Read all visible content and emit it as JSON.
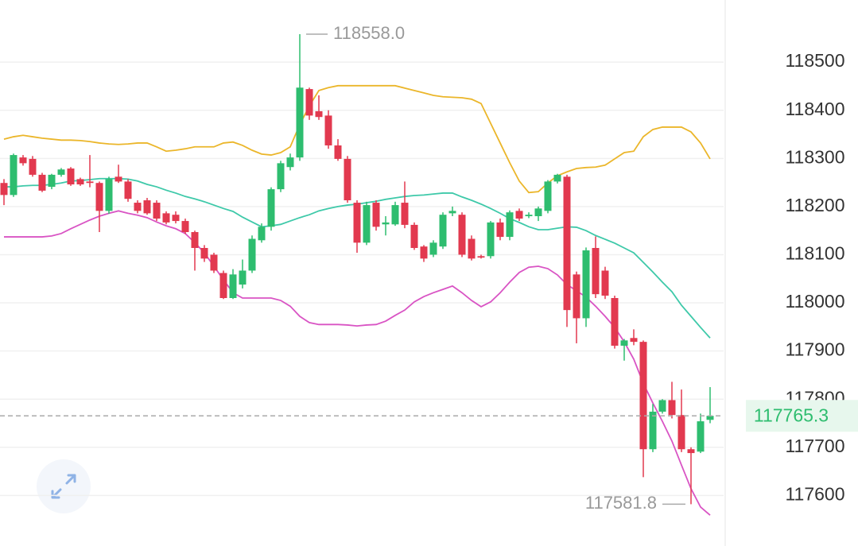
{
  "chart_data": {
    "type": "candlestick",
    "up_color": "#2ebd6f",
    "down_color": "#e2394f",
    "ylim": [
      117495,
      118629
    ],
    "yticks": [
      117600,
      117700,
      117800,
      117900,
      118000,
      118100,
      118200,
      118300,
      118400,
      118500
    ],
    "grid": true,
    "ohlc": [
      [
        118249,
        118257,
        118203,
        118224
      ],
      [
        118224,
        118310,
        118220,
        118307
      ],
      [
        118302,
        118307,
        118285,
        118290
      ],
      [
        118299,
        118305,
        118262,
        118266
      ],
      [
        118266,
        118270,
        118230,
        118233
      ],
      [
        118241,
        118268,
        118236,
        118266
      ],
      [
        118266,
        118280,
        118262,
        118277
      ],
      [
        118279,
        118282,
        118243,
        118246
      ],
      [
        118257,
        118260,
        118243,
        118246
      ],
      [
        118252,
        118307,
        118240,
        118249
      ],
      [
        118249,
        118252,
        118147,
        118191
      ],
      [
        118191,
        118262,
        118185,
        118257
      ],
      [
        118262,
        118287,
        118249,
        118252
      ],
      [
        118252,
        118257,
        118210,
        118216
      ],
      [
        118208,
        118213,
        118186,
        118191
      ],
      [
        118213,
        118218,
        118183,
        118186
      ],
      [
        118208,
        118213,
        118170,
        118175
      ],
      [
        118186,
        118190,
        118163,
        118167
      ],
      [
        118183,
        118190,
        118165,
        118170
      ],
      [
        118170,
        118175,
        118143,
        118147
      ],
      [
        118147,
        118150,
        118067,
        118114
      ],
      [
        118114,
        118120,
        118085,
        118092
      ],
      [
        118100,
        118104,
        118062,
        118067
      ],
      [
        118062,
        118067,
        118008,
        118010
      ],
      [
        118010,
        118070,
        118008,
        118059
      ],
      [
        118038,
        118090,
        118030,
        118067
      ],
      [
        118067,
        118140,
        118062,
        118133
      ],
      [
        118130,
        118165,
        118125,
        118158
      ],
      [
        118158,
        118240,
        118150,
        118236
      ],
      [
        118236,
        118295,
        118230,
        118290
      ],
      [
        118282,
        118310,
        118275,
        118302
      ],
      [
        118302,
        118558,
        118295,
        118447
      ],
      [
        118444,
        118447,
        118380,
        118389
      ],
      [
        118398,
        118431,
        118380,
        118386
      ],
      [
        118389,
        118400,
        118320,
        118327
      ],
      [
        118327,
        118340,
        118295,
        118299
      ],
      [
        118299,
        118305,
        118208,
        118213
      ],
      [
        118208,
        118213,
        118104,
        118125
      ],
      [
        118125,
        118210,
        118120,
        118203
      ],
      [
        118208,
        118213,
        118150,
        118158
      ],
      [
        118163,
        118180,
        118140,
        118167
      ],
      [
        118163,
        118210,
        118160,
        118203
      ],
      [
        118208,
        118252,
        118155,
        118162
      ],
      [
        118162,
        118167,
        118110,
        118114
      ],
      [
        118117,
        118120,
        118085,
        118092
      ],
      [
        118100,
        118130,
        118095,
        118125
      ],
      [
        118117,
        118188,
        118112,
        118183
      ],
      [
        118186,
        118200,
        118180,
        118191
      ],
      [
        118183,
        118188,
        118095,
        118100
      ],
      [
        118133,
        118140,
        118088,
        118092
      ],
      [
        118097,
        118100,
        118092,
        118094
      ],
      [
        118097,
        118170,
        118092,
        118167
      ],
      [
        118167,
        118175,
        118130,
        118137
      ],
      [
        118137,
        118192,
        118130,
        118188
      ],
      [
        118191,
        118196,
        118170,
        118175
      ],
      [
        118180,
        118188,
        118176,
        118183
      ],
      [
        118180,
        118200,
        118170,
        118196
      ],
      [
        118191,
        118255,
        118186,
        118252
      ],
      [
        118252,
        118268,
        118248,
        118266
      ],
      [
        118262,
        118266,
        117950,
        117985
      ],
      [
        118059,
        118065,
        117916,
        117968
      ],
      [
        117968,
        118115,
        117950,
        118109
      ],
      [
        118114,
        118138,
        118010,
        118018
      ],
      [
        118067,
        118075,
        118008,
        118015
      ],
      [
        118010,
        118015,
        117905,
        117911
      ],
      [
        117911,
        117925,
        117880,
        117922
      ],
      [
        117927,
        117945,
        117912,
        117919
      ],
      [
        117919,
        117922,
        117638,
        117696
      ],
      [
        117696,
        117790,
        117690,
        117774
      ],
      [
        117774,
        117800,
        117770,
        117798
      ],
      [
        117798,
        117836,
        117760,
        117767
      ],
      [
        117767,
        117820,
        117690,
        117696
      ],
      [
        117696,
        117700,
        117581.8,
        117688
      ],
      [
        117691,
        117770,
        117688,
        117754
      ],
      [
        117757,
        117825,
        117750,
        117765.3
      ]
    ],
    "series": [
      {
        "color": "#ebb62a",
        "values": [
          118340,
          118345,
          118348,
          118345,
          118342,
          118340,
          118338,
          118338,
          118337,
          118335,
          118332,
          118330,
          118329,
          118330,
          118332,
          118332,
          118324,
          118315,
          118317,
          118320,
          118324,
          118324,
          118324,
          118332,
          118334,
          118327,
          118317,
          118309,
          118307,
          118312,
          118324,
          118370,
          118409,
          118441,
          118447,
          118451,
          118451,
          118451,
          118451,
          118451,
          118451,
          118451,
          118446,
          118441,
          118436,
          118431,
          118428,
          118427,
          118426,
          118423,
          118414,
          118373,
          118332,
          118291,
          118253,
          118229,
          118231,
          118249,
          118264,
          118272,
          118279,
          118281,
          118282,
          118286,
          118299,
          118312,
          118315,
          118345,
          118360,
          118365,
          118365,
          118365,
          118355,
          118332,
          118299
        ]
      },
      {
        "color": "#3ec9a9",
        "values": [
          118241,
          118241,
          118243,
          118244,
          118244,
          118246,
          118249,
          118253,
          118254,
          118256,
          118258,
          118258,
          118258,
          118257,
          118253,
          118246,
          118241,
          118234,
          118228,
          118221,
          118216,
          118210,
          118203,
          118196,
          118190,
          118178,
          118168,
          118158,
          118160,
          118163,
          118170,
          118177,
          118183,
          118191,
          118196,
          118200,
          118203,
          118205,
          118208,
          118211,
          118215,
          118218,
          118221,
          118223,
          118224,
          118226,
          118228,
          118228,
          118220,
          118213,
          118205,
          118196,
          118186,
          118175,
          118167,
          118158,
          118152,
          118152,
          118155,
          118158,
          118157,
          118150,
          118140,
          118132,
          118124,
          118114,
          118104,
          118084,
          118064,
          118043,
          118023,
          117995,
          117972,
          117949,
          117927
        ]
      },
      {
        "color": "#d954c4",
        "values": [
          118137,
          118137,
          118137,
          118137,
          118137,
          118139,
          118144,
          118154,
          118163,
          118172,
          118180,
          118186,
          118191,
          118186,
          118182,
          118177,
          118168,
          118160,
          118154,
          118144,
          118125,
          118104,
          118076,
          118048,
          118021,
          118010,
          118010,
          118010,
          118010,
          118005,
          117993,
          117972,
          117959,
          117955,
          117955,
          117955,
          117954,
          117952,
          117954,
          117955,
          117962,
          117974,
          117985,
          118002,
          118013,
          118021,
          118028,
          118035,
          118021,
          118005,
          117992,
          118002,
          118021,
          118043,
          118063,
          118074,
          118076,
          118071,
          118058,
          118038,
          118025,
          118012,
          117993,
          117972,
          117949,
          117919,
          117883,
          117833,
          117792,
          117754,
          117713,
          117663,
          117614,
          117576,
          117559
        ]
      }
    ],
    "max_label": {
      "value": 118558,
      "label": "118558.0"
    },
    "min_label": {
      "value": 117581.8,
      "label": "117581.8"
    },
    "last_price": {
      "value": 117765.3,
      "label": "117765.3"
    }
  }
}
